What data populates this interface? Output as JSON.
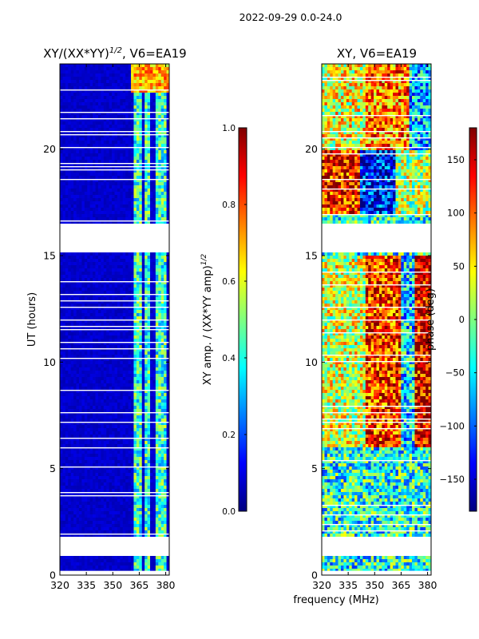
{
  "figure_title": "2022-09-29 0.0-24.0",
  "shared_xlabel": "frequency (MHz)",
  "colors": {
    "jet": [
      "#00007f",
      "#0000ff",
      "#007fff",
      "#00ffff",
      "#7fff7f",
      "#ffff00",
      "#ff7f00",
      "#ff0000",
      "#7f0000"
    ],
    "background": "#ffffff",
    "gap": "#ffffff"
  },
  "chart_data": [
    {
      "type": "heatmap",
      "title": "XY/(XX*YY)",
      "title_sup": "1/2",
      "title_suffix": ", V6=EA19",
      "xlabel": "",
      "ylabel": "UT (hours)",
      "xlim": [
        320,
        382
      ],
      "ylim": [
        0,
        24
      ],
      "xticks": [
        "320",
        "335",
        "350",
        "365",
        "380"
      ],
      "xtick_values": [
        320,
        335,
        350,
        365,
        380
      ],
      "yticks": [
        "0",
        "5",
        "10",
        "15",
        "20"
      ],
      "ytick_values": [
        0,
        5,
        10,
        15,
        20
      ],
      "colorbar": {
        "label": "XY amp. / (XX*YY amp)",
        "label_sup": "1/2",
        "range": [
          0.0,
          1.0
        ],
        "ticks": [
          "0.0",
          "0.2",
          "0.4",
          "0.6",
          "0.8",
          "1.0"
        ],
        "tick_values": [
          0.0,
          0.2,
          0.4,
          0.6,
          0.8,
          1.0
        ]
      },
      "background_value": 0.05,
      "data_gaps_hours": [
        [
          16.5,
          16.65
        ],
        [
          15.15,
          16.5
        ],
        [
          1.8,
          0.9
        ],
        [
          0.0,
          0.2
        ]
      ],
      "bright_channels_mhz": [
        [
          362,
          366
        ],
        [
          368,
          371
        ],
        [
          374,
          377
        ],
        [
          378,
          380
        ]
      ]
    },
    {
      "type": "heatmap",
      "title": "XY, V6=EA19",
      "xlabel": "",
      "ylabel": "",
      "xlim": [
        320,
        382
      ],
      "ylim": [
        0,
        24
      ],
      "xticks": [
        "320",
        "335",
        "350",
        "365",
        "380"
      ],
      "xtick_values": [
        320,
        335,
        350,
        365,
        380
      ],
      "yticks": [
        "0",
        "5",
        "10",
        "15",
        "20"
      ],
      "ytick_values": [
        0,
        5,
        10,
        15,
        20
      ],
      "colorbar": {
        "label": "phase (deg)",
        "range": [
          -180,
          180
        ],
        "ticks": [
          "−150",
          "−100",
          "−50",
          "0",
          "50",
          "100",
          "150"
        ],
        "tick_values": [
          -150,
          -100,
          -50,
          0,
          50,
          100,
          150
        ]
      }
    }
  ]
}
